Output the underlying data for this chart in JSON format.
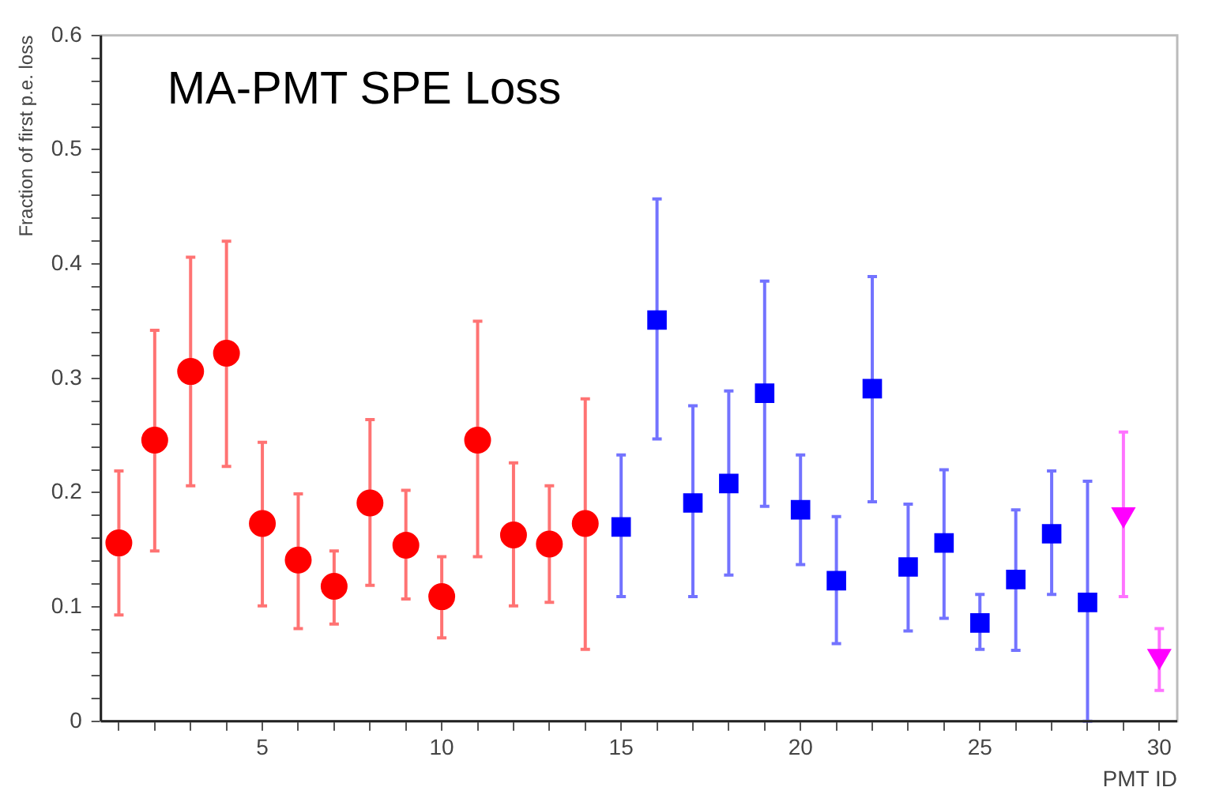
{
  "chart_data": {
    "type": "scatter",
    "title": "MA-PMT SPE Loss",
    "xlabel": "PMT ID",
    "ylabel": "Fraction of first p.e. loss",
    "xlim": [
      0.5,
      30.5
    ],
    "xticks": [
      {
        "value": 1,
        "label": null
      },
      {
        "value": 2,
        "label": null
      },
      {
        "value": 3,
        "label": null
      },
      {
        "value": 4,
        "label": null
      },
      5,
      {
        "value": 6,
        "label": null
      },
      {
        "value": 7,
        "label": null
      },
      {
        "value": 8,
        "label": null
      },
      {
        "value": 9,
        "label": null
      },
      10,
      {
        "value": 11,
        "label": null
      },
      {
        "value": 12,
        "label": null
      },
      {
        "value": 13,
        "label": null
      },
      {
        "value": 14,
        "label": null
      },
      15,
      {
        "value": 16,
        "label": null
      },
      {
        "value": 17,
        "label": null
      },
      {
        "value": 18,
        "label": null
      },
      {
        "value": 19,
        "label": null
      },
      20,
      {
        "value": 21,
        "label": null
      },
      {
        "value": 22,
        "label": null
      },
      {
        "value": 23,
        "label": null
      },
      {
        "value": 24,
        "label": null
      },
      25,
      {
        "value": 26,
        "label": null
      },
      {
        "value": 27,
        "label": null
      },
      {
        "value": 28,
        "label": null
      },
      {
        "value": 29,
        "label": null
      },
      30
    ],
    "ylim": [
      0,
      0.6
    ],
    "yticks": [
      0,
      {
        "value": 0.02,
        "label": null
      },
      {
        "value": 0.04,
        "label": null
      },
      {
        "value": 0.06,
        "label": null
      },
      {
        "value": 0.08,
        "label": null
      },
      0.1,
      {
        "value": 0.12,
        "label": null
      },
      {
        "value": 0.14,
        "label": null
      },
      {
        "value": 0.16,
        "label": null
      },
      {
        "value": 0.18,
        "label": null
      },
      0.2,
      {
        "value": 0.22,
        "label": null
      },
      {
        "value": 0.24,
        "label": null
      },
      {
        "value": 0.26,
        "label": null
      },
      {
        "value": 0.28,
        "label": null
      },
      0.3,
      {
        "value": 0.32,
        "label": null
      },
      {
        "value": 0.34,
        "label": null
      },
      {
        "value": 0.36,
        "label": null
      },
      {
        "value": 0.38,
        "label": null
      },
      0.4,
      {
        "value": 0.42,
        "label": null
      },
      {
        "value": 0.44,
        "label": null
      },
      {
        "value": 0.46,
        "label": null
      },
      {
        "value": 0.48,
        "label": null
      },
      0.5,
      {
        "value": 0.52,
        "label": null
      },
      {
        "value": 0.54,
        "label": null
      },
      {
        "value": 0.56,
        "label": null
      },
      {
        "value": 0.58,
        "label": null
      },
      0.6
    ],
    "grid": false,
    "legend": false,
    "series": [
      {
        "color": "#ff0000",
        "marker": "circle",
        "x": [
          1,
          2,
          3,
          4,
          5,
          6,
          7,
          8,
          9,
          10,
          11,
          12,
          13,
          14
        ],
        "values": [
          0.156,
          0.246,
          0.306,
          0.322,
          0.173,
          0.141,
          0.118,
          0.191,
          0.154,
          0.109,
          0.246,
          0.163,
          0.155,
          0.173
        ],
        "errors": [
          [
            0.093,
            0.219
          ],
          [
            0.149,
            0.342
          ],
          [
            0.206,
            0.406
          ],
          [
            0.223,
            0.42
          ],
          [
            0.101,
            0.244
          ],
          [
            0.081,
            0.199
          ],
          [
            0.085,
            0.149
          ],
          [
            0.119,
            0.264
          ],
          [
            0.107,
            0.202
          ],
          [
            0.073,
            0.144
          ],
          [
            0.144,
            0.35
          ],
          [
            0.101,
            0.226
          ],
          [
            0.104,
            0.206
          ],
          [
            0.063,
            0.282
          ]
        ]
      },
      {
        "color": "#0000ff",
        "marker": "square",
        "x": [
          15,
          16,
          17,
          18,
          19,
          20,
          21,
          22,
          23,
          24,
          25,
          26,
          27,
          28
        ],
        "values": [
          0.17,
          0.351,
          0.191,
          0.208,
          0.287,
          0.185,
          0.123,
          0.291,
          0.135,
          0.156,
          0.086,
          0.124,
          0.164,
          0.104
        ],
        "errors": [
          [
            0.109,
            0.233
          ],
          [
            0.247,
            0.457
          ],
          [
            0.109,
            0.276
          ],
          [
            0.128,
            0.289
          ],
          [
            0.188,
            0.385
          ],
          [
            0.137,
            0.233
          ],
          [
            0.068,
            0.179
          ],
          [
            0.192,
            0.389
          ],
          [
            0.079,
            0.19
          ],
          [
            0.09,
            0.22
          ],
          [
            0.063,
            0.111
          ],
          [
            0.062,
            0.185
          ],
          [
            0.111,
            0.219
          ],
          [
            0,
            0.21
          ]
        ]
      },
      {
        "color": "#ff00ff",
        "marker": "triangle",
        "x": [
          29,
          30
        ],
        "values": [
          0.181,
          0.057
        ],
        "errors": [
          [
            0.109,
            0.253
          ],
          [
            0.027,
            0.081
          ]
        ]
      }
    ]
  }
}
